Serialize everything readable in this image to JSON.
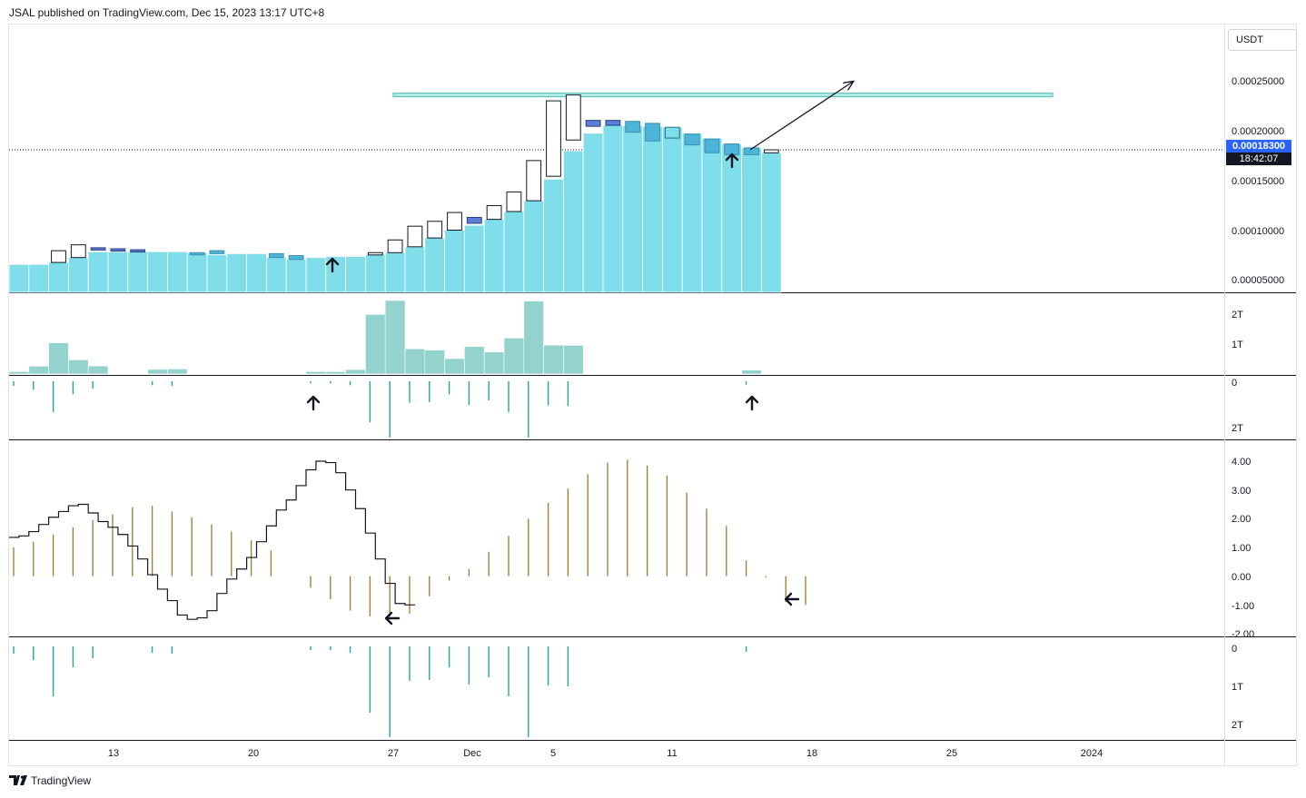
{
  "header": {
    "attribution": "JSAL published on TradingView.com, Dec 15, 2023 13:17 UTC+8"
  },
  "footer": {
    "brand": "TradingView"
  },
  "price_scale": {
    "currency": "USDT",
    "last_price": "0.00018300",
    "countdown": "18:42:07"
  },
  "colors": {
    "candle_fill": "#80deea",
    "candle_stroke": "#ffffff",
    "hollow_stroke": "#131722",
    "blue_body": "#5b7fd8",
    "mid_blue_body": "#4db6d8",
    "volume": "#93d2cd",
    "histogram_teal": "#26a69a",
    "oscillator_line": "#131722",
    "oscillator_bar": "#9c7a2e",
    "resistance": "#4dbfb2",
    "price_tag": "#2962ff"
  },
  "chart_data": [
    {
      "type": "candlestick",
      "pane": "price",
      "y_range": [
        3.75e-05,
        0.00031
      ],
      "y_ticks": [
        "0.00025000",
        "0.00020000",
        "0.00015000",
        "0.00010000",
        "0.00005000"
      ],
      "x_tick_labels": [
        "13",
        "20",
        "27",
        "Dec",
        "5",
        "11",
        "18",
        "25",
        "2024"
      ],
      "last_price": 0.000183,
      "resistance_level": 0.000239,
      "candles": [
        {
          "fill": 6.6e-05,
          "open": 6.6e-05,
          "close": 6.6e-05,
          "style": "none"
        },
        {
          "fill": 6.6e-05,
          "open": 6.6e-05,
          "close": 6.6e-05,
          "style": "none"
        },
        {
          "fill": 6.8e-05,
          "open": 6.8e-05,
          "close": 8e-05,
          "style": "hollow"
        },
        {
          "fill": 7.3e-05,
          "open": 7.3e-05,
          "close": 8.6e-05,
          "style": "hollow"
        },
        {
          "fill": 7.9e-05,
          "open": 8.3e-05,
          "close": 8.1e-05,
          "style": "blue"
        },
        {
          "fill": 7.9e-05,
          "open": 8e-05,
          "close": 8.2e-05,
          "style": "blue"
        },
        {
          "fill": 7.9e-05,
          "open": 8e-05,
          "close": 8.1e-05,
          "style": "blue"
        },
        {
          "fill": 7.9e-05,
          "open": 8e-05,
          "close": 8.1e-05,
          "style": "none"
        },
        {
          "fill": 7.9e-05,
          "open": 8e-05,
          "close": 8.1e-05,
          "style": "none"
        },
        {
          "fill": 7.8e-05,
          "open": 7.8e-05,
          "close": 7.8e-05,
          "style": "mid"
        },
        {
          "fill": 7.6e-05,
          "open": 7.7e-05,
          "close": 8e-05,
          "style": "mid"
        },
        {
          "fill": 7.7e-05,
          "open": 7.7e-05,
          "close": 7.7e-05,
          "style": "none"
        },
        {
          "fill": 7.7e-05,
          "open": 7.7e-05,
          "close": 7.7e-05,
          "style": "none"
        },
        {
          "fill": 7.3e-05,
          "open": 7.3e-05,
          "close": 7.7e-05,
          "style": "mid"
        },
        {
          "fill": 7.1e-05,
          "open": 7.1e-05,
          "close": 7.5e-05,
          "style": "mid"
        },
        {
          "fill": 7.3e-05,
          "open": 7.3e-05,
          "close": 7.4e-05,
          "style": "none"
        },
        {
          "fill": 7.4e-05,
          "open": 7.4e-05,
          "close": 7.4e-05,
          "style": "none"
        },
        {
          "fill": 7.4e-05,
          "open": 7.4e-05,
          "close": 7.4e-05,
          "style": "none"
        },
        {
          "fill": 7.6e-05,
          "open": 7.6e-05,
          "close": 7.8e-05,
          "style": "hollow"
        },
        {
          "fill": 7.8e-05,
          "open": 7.8e-05,
          "close": 9.1e-05,
          "style": "hollow"
        },
        {
          "fill": 8.4e-05,
          "open": 8.4e-05,
          "close": 0.000105,
          "style": "hollow"
        },
        {
          "fill": 9.3e-05,
          "open": 9.3e-05,
          "close": 0.00011,
          "style": "hollow"
        },
        {
          "fill": 0.000101,
          "open": 0.000101,
          "close": 0.000119,
          "style": "hollow"
        },
        {
          "fill": 0.000106,
          "open": 0.000108,
          "close": 0.000114,
          "style": "blue"
        },
        {
          "fill": 0.000112,
          "open": 0.000112,
          "close": 0.000126,
          "style": "hollow"
        },
        {
          "fill": 0.00012,
          "open": 0.00012,
          "close": 0.00014,
          "style": "hollow"
        },
        {
          "fill": 0.000131,
          "open": 0.000131,
          "close": 0.000172,
          "style": "hollow"
        },
        {
          "fill": 0.000153,
          "open": 0.000156,
          "close": 0.000233,
          "style": "hollow"
        },
        {
          "fill": 0.000182,
          "open": 0.000193,
          "close": 0.000239,
          "style": "hollow"
        },
        {
          "fill": 0.0002,
          "open": 0.000207,
          "close": 0.000213,
          "style": "blue"
        },
        {
          "fill": 0.000208,
          "open": 0.000208,
          "close": 0.000213,
          "style": "blue"
        },
        {
          "fill": 0.000208,
          "open": 0.000201,
          "close": 0.000212,
          "style": "mid"
        },
        {
          "fill": 0.000207,
          "open": 0.000192,
          "close": 0.00021,
          "style": "mid"
        },
        {
          "fill": 0.000206,
          "open": 0.000195,
          "close": 0.000206,
          "style": "hollowblue"
        },
        {
          "fill": 0.0002,
          "open": 0.000188,
          "close": 0.000199,
          "style": "mid"
        },
        {
          "fill": 0.000195,
          "open": 0.00018,
          "close": 0.000194,
          "style": "mid"
        },
        {
          "fill": 0.000189,
          "open": 0.000178,
          "close": 0.000189,
          "style": "mid"
        },
        {
          "fill": 0.000185,
          "open": 0.000178,
          "close": 0.000185,
          "style": "mid"
        },
        {
          "fill": 0.00018,
          "open": 0.00018,
          "close": 0.000183,
          "style": "hollow"
        }
      ]
    },
    {
      "type": "bar",
      "pane": "volume",
      "y_ticks": [
        "2T",
        "1T"
      ],
      "values": [
        0.1,
        0.32,
        1.27,
        0.58,
        0.33,
        0,
        0,
        0.19,
        0.21,
        0,
        0,
        0,
        0,
        0,
        0,
        0.1,
        0.1,
        0.18,
        2.43,
        3.0,
        1.03,
        0.98,
        0.63,
        1.12,
        0.9,
        1.47,
        2.98,
        1.18,
        1.17,
        0,
        0,
        0,
        0,
        0,
        0,
        0,
        0,
        0.16
      ]
    },
    {
      "type": "bar",
      "pane": "volume-histogram",
      "y_ticks": [
        "0",
        "2T"
      ],
      "values": [
        0.08,
        0.15,
        0.55,
        0.23,
        0.13,
        0,
        0,
        0.07,
        0.08,
        0,
        0,
        0,
        0,
        0,
        0,
        0.04,
        0.04,
        0.07,
        0.73,
        1.0,
        0.38,
        0.37,
        0.23,
        0.42,
        0.34,
        0.55,
        1.0,
        0.43,
        0.44,
        0,
        0,
        0,
        0,
        0,
        0,
        0,
        0,
        0.06
      ]
    },
    {
      "type": "line",
      "pane": "oscillator",
      "y_range": [
        -2.0,
        4.3
      ],
      "y_ticks": [
        "4.00",
        "3.00",
        "2.00",
        "1.00",
        "0.00",
        "-1.00",
        "-2.00"
      ],
      "line_values": [
        1.35,
        1.4,
        1.55,
        1.8,
        2.05,
        2.25,
        2.45,
        2.5,
        2.2,
        1.9,
        1.7,
        1.45,
        1.05,
        0.6,
        0.05,
        -0.45,
        -0.85,
        -1.35,
        -1.5,
        -1.45,
        -1.2,
        -0.6,
        -0.1,
        0.25,
        0.65,
        1.2,
        1.75,
        2.3,
        2.65,
        3.15,
        3.7,
        4.0,
        3.95,
        3.6,
        3.0,
        2.35,
        1.5,
        0.6,
        -0.25,
        -0.95,
        -1.0
      ],
      "bar_values": [
        1.0,
        1.2,
        1.45,
        1.7,
        1.95,
        2.15,
        2.4,
        2.45,
        2.25,
        2.05,
        1.8,
        1.55,
        1.25,
        0.9,
        0.0,
        -0.4,
        -0.8,
        -1.2,
        -1.4,
        -1.4,
        -1.3,
        -0.7,
        -0.15,
        0.25,
        0.85,
        1.4,
        2.0,
        2.55,
        3.05,
        3.55,
        3.95,
        4.05,
        3.85,
        3.5,
        2.9,
        2.35,
        1.75,
        0.55,
        -0.05,
        -0.9,
        -1.0
      ]
    },
    {
      "type": "bar",
      "pane": "bottom-histogram",
      "y_ticks": [
        "0",
        "1T",
        "2T"
      ],
      "values": [
        0.08,
        0.15,
        0.55,
        0.23,
        0.13,
        0,
        0,
        0.07,
        0.08,
        0,
        0,
        0,
        0,
        0,
        0,
        0.04,
        0.04,
        0.07,
        0.73,
        1.0,
        0.38,
        0.37,
        0.23,
        0.42,
        0.34,
        0.55,
        1.0,
        0.43,
        0.44,
        0,
        0,
        0,
        0,
        0,
        0,
        0,
        0,
        0.06
      ]
    }
  ]
}
